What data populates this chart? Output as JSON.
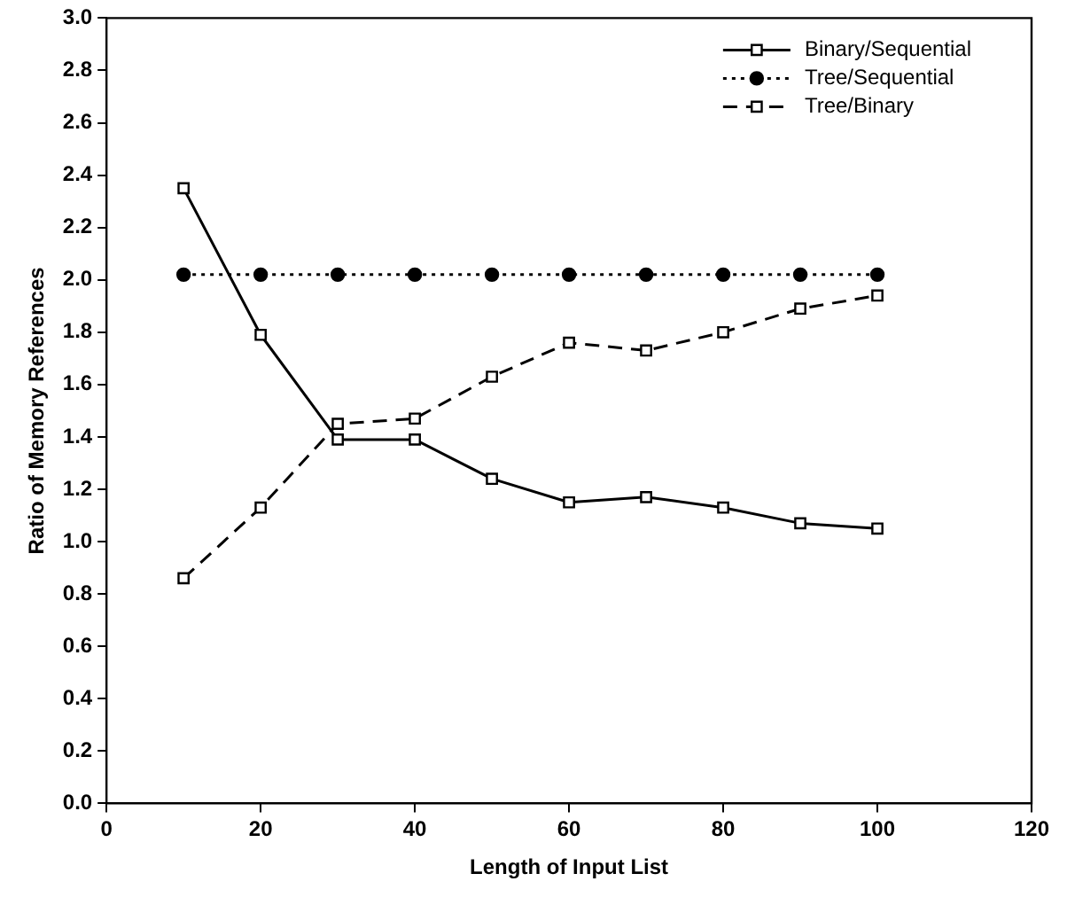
{
  "chart_data": {
    "type": "line",
    "xlabel": "Length of Input List",
    "ylabel": "Ratio of Memory References",
    "x": [
      10,
      20,
      30,
      40,
      50,
      60,
      70,
      80,
      90,
      100
    ],
    "series": [
      {
        "name": "Binary/Sequential",
        "color": "#000000",
        "marker": "square",
        "line_style": "solid",
        "values": [
          2.35,
          1.79,
          1.39,
          1.39,
          1.24,
          1.15,
          1.17,
          1.13,
          1.07,
          1.05
        ]
      },
      {
        "name": "Tree/Sequential",
        "color": "#000000",
        "marker": "circle",
        "line_style": "dotted",
        "values": [
          2.02,
          2.02,
          2.02,
          2.02,
          2.02,
          2.02,
          2.02,
          2.02,
          2.02,
          2.02
        ]
      },
      {
        "name": "Tree/Binary",
        "color": "#000000",
        "marker": "square",
        "line_style": "dashed",
        "values": [
          0.86,
          1.13,
          1.45,
          1.47,
          1.63,
          1.76,
          1.73,
          1.8,
          1.89,
          1.94
        ]
      }
    ],
    "xlim": [
      0,
      120
    ],
    "xticks": [
      0,
      20,
      40,
      60,
      80,
      100,
      120
    ],
    "ylim": [
      0,
      3
    ],
    "yticks": [
      {
        "value": 0,
        "label": "0.0"
      },
      {
        "value": 0.2,
        "label": "0.2"
      },
      {
        "value": 0.4,
        "label": "0.4"
      },
      {
        "value": 0.6,
        "label": "0.6"
      },
      {
        "value": 0.8,
        "label": "0.8"
      },
      {
        "value": 1,
        "label": "1.0"
      },
      {
        "value": 1.2,
        "label": "1.2"
      },
      {
        "value": 1.4,
        "label": "1.4"
      },
      {
        "value": 1.6,
        "label": "1.6"
      },
      {
        "value": 1.8,
        "label": "1.8"
      },
      {
        "value": 2,
        "label": "2.0"
      },
      {
        "value": 2.2,
        "label": "2.2"
      },
      {
        "value": 2.4,
        "label": "2.4"
      },
      {
        "value": 2.6,
        "label": "2.6"
      },
      {
        "value": 2.8,
        "label": "2.8"
      },
      {
        "value": 3,
        "label": "3.0"
      }
    ],
    "grid": false,
    "legend": "top right"
  }
}
